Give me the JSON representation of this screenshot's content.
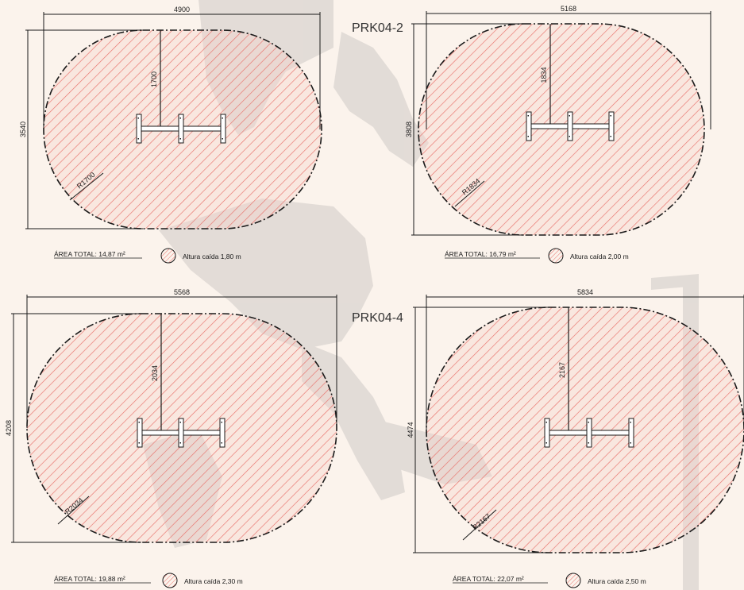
{
  "colors": {
    "background": "#fbf3ec",
    "hatch": "#e8706a",
    "zone_fill": "#f6d2c8",
    "line": "#1a1a1a",
    "silhouette": "#8f8f8f"
  },
  "labels": {
    "top": "PRK04-2",
    "bottom": "PRK04-4"
  },
  "panels": [
    {
      "width_label": "4900",
      "height_label": "3540",
      "radius_label": "1700",
      "radius_text": "R1700",
      "area_text": "ÁREA TOTAL: 14,87 m²",
      "legend_text": "Altura caída 1,80 m"
    },
    {
      "width_label": "5168",
      "height_label": "3808",
      "radius_label": "1834",
      "radius_text": "R1834",
      "area_text": "ÁREA TOTAL: 16,79 m²",
      "legend_text": "Altura caída 2,00 m"
    },
    {
      "width_label": "5568",
      "height_label": "4208",
      "radius_label": "2034",
      "radius_text": "R2034",
      "area_text": "ÁREA TOTAL: 19,88 m²",
      "legend_text": "Altura caída 2,30 m"
    },
    {
      "width_label": "5834",
      "height_label": "4474",
      "radius_label": "2167",
      "radius_text": "R2167",
      "area_text": "ÁREA TOTAL: 22,07 m²",
      "legend_text": "Altura caída 2,50 m"
    }
  ]
}
